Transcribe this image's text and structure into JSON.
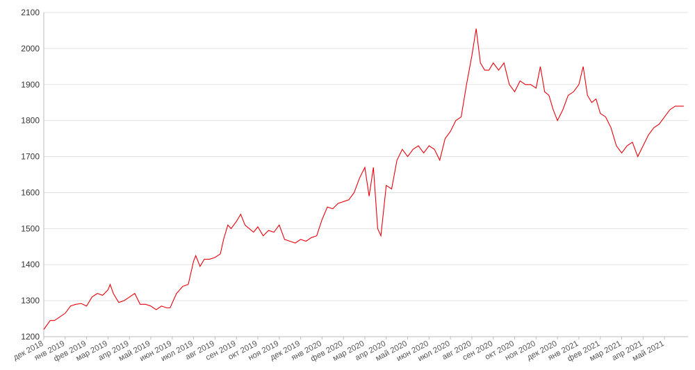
{
  "chart_data": {
    "type": "line",
    "x": [
      0,
      0.3,
      0.5,
      1,
      1.25,
      1.5,
      1.75,
      2,
      2.25,
      2.5,
      2.75,
      3,
      3.1,
      3.25,
      3.5,
      3.75,
      4,
      4.25,
      4.5,
      4.75,
      5,
      5.25,
      5.5,
      5.75,
      5.9,
      6.2,
      6.5,
      6.75,
      7,
      7.1,
      7.3,
      7.5,
      7.75,
      8,
      8.25,
      8.4,
      8.6,
      8.75,
      9,
      9.2,
      9.4,
      9.6,
      9.8,
      10,
      10.25,
      10.5,
      10.75,
      11,
      11.25,
      11.5,
      11.75,
      12,
      12.25,
      12.5,
      12.75,
      13,
      13.25,
      13.5,
      13.75,
      14,
      14.25,
      14.5,
      14.75,
      15,
      15.2,
      15.4,
      15.6,
      15.75,
      16,
      16.25,
      16.5,
      16.75,
      17,
      17.25,
      17.5,
      17.75,
      18,
      18.25,
      18.5,
      18.75,
      19,
      19.25,
      19.5,
      19.75,
      20,
      20.2,
      20.4,
      20.6,
      20.8,
      21,
      21.25,
      21.5,
      21.75,
      22,
      22.25,
      22.5,
      22.75,
      23,
      23.2,
      23.4,
      23.6,
      23.8,
      24,
      24.25,
      24.5,
      24.75,
      25,
      25.2,
      25.4,
      25.6,
      25.8,
      26,
      26.25,
      26.5,
      26.75,
      27,
      27.25,
      27.5,
      27.75,
      28,
      28.25,
      28.5,
      28.75,
      29,
      29.25,
      29.5,
      29.9
    ],
    "series": [
      {
        "color": "#e8000b",
        "values": [
          1220,
          1245,
          1245,
          1265,
          1285,
          1290,
          1292,
          1285,
          1310,
          1320,
          1315,
          1330,
          1345,
          1320,
          1295,
          1300,
          1310,
          1320,
          1290,
          1290,
          1285,
          1275,
          1285,
          1280,
          1280,
          1320,
          1340,
          1345,
          1410,
          1425,
          1395,
          1415,
          1415,
          1420,
          1430,
          1470,
          1510,
          1500,
          1520,
          1540,
          1510,
          1500,
          1490,
          1505,
          1480,
          1495,
          1490,
          1510,
          1470,
          1465,
          1460,
          1470,
          1465,
          1475,
          1480,
          1525,
          1560,
          1555,
          1570,
          1575,
          1580,
          1600,
          1640,
          1670,
          1590,
          1670,
          1500,
          1480,
          1620,
          1610,
          1690,
          1720,
          1700,
          1720,
          1730,
          1710,
          1730,
          1720,
          1690,
          1750,
          1770,
          1800,
          1810,
          1900,
          1980,
          2055,
          1960,
          1940,
          1940,
          1960,
          1940,
          1960,
          1900,
          1880,
          1910,
          1900,
          1900,
          1890,
          1950,
          1880,
          1870,
          1830,
          1800,
          1830,
          1870,
          1880,
          1900,
          1950,
          1870,
          1850,
          1860,
          1820,
          1810,
          1780,
          1730,
          1710,
          1730,
          1740,
          1700,
          1730,
          1760,
          1780,
          1790,
          1810,
          1830,
          1840,
          1840
        ]
      }
    ],
    "xlim": [
      0,
      30.1
    ],
    "xticks": [
      {
        "value": 0,
        "label": "дек 2018"
      },
      {
        "value": 1,
        "label": "янв 2019"
      },
      {
        "value": 2,
        "label": "фев 2019"
      },
      {
        "value": 3,
        "label": "мар 2019"
      },
      {
        "value": 4,
        "label": "апр 2019"
      },
      {
        "value": 5,
        "label": "май 2019"
      },
      {
        "value": 6,
        "label": "июн 2019"
      },
      {
        "value": 7,
        "label": "июл 2019"
      },
      {
        "value": 8,
        "label": "авг 2019"
      },
      {
        "value": 9,
        "label": "сен 2019"
      },
      {
        "value": 10,
        "label": "окт 2019"
      },
      {
        "value": 11,
        "label": "ноя 2019"
      },
      {
        "value": 12,
        "label": "дек 2019"
      },
      {
        "value": 13,
        "label": "янв 2020"
      },
      {
        "value": 14,
        "label": "фев 2020"
      },
      {
        "value": 15,
        "label": "мар 2020"
      },
      {
        "value": 16,
        "label": "апр 2020"
      },
      {
        "value": 17,
        "label": "май 2020"
      },
      {
        "value": 18,
        "label": "июн 2020"
      },
      {
        "value": 19,
        "label": "июл 2020"
      },
      {
        "value": 20,
        "label": "авг 2020"
      },
      {
        "value": 21,
        "label": "сен 2020"
      },
      {
        "value": 22,
        "label": "окт 2020"
      },
      {
        "value": 23,
        "label": "ноя 2020"
      },
      {
        "value": 24,
        "label": "дек 2020"
      },
      {
        "value": 25,
        "label": "янв 2021"
      },
      {
        "value": 26,
        "label": "фев 2021"
      },
      {
        "value": 27,
        "label": "мар 2021"
      },
      {
        "value": 28,
        "label": "апр 2021"
      },
      {
        "value": 29,
        "label": "май 2021"
      }
    ],
    "ylim": [
      1200,
      2100
    ],
    "yticks": [
      1200,
      1300,
      1400,
      1500,
      1600,
      1700,
      1800,
      1900,
      2000,
      2100
    ],
    "grid": true
  }
}
